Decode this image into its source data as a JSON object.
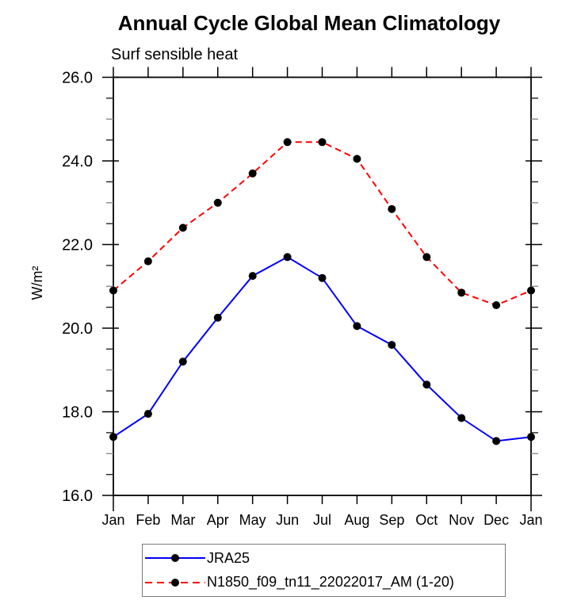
{
  "title": "Annual Cycle Global Mean Climatology",
  "subtitle": "Surf sensible heat",
  "ylabel": "W/m²",
  "colors": {
    "series1": "#0000ff",
    "series2": "#ff0000",
    "marker": "#000000",
    "axis": "#000000",
    "background": "#ffffff"
  },
  "legend": {
    "items": [
      {
        "label": "JRA25",
        "color": "#0000ff",
        "line_style": "solid",
        "marker": "filled-circle",
        "marker_color": "#000000"
      },
      {
        "label": "N1850_f09_tn11_22022017_AM (1-20)",
        "color": "#ff0000",
        "line_style": "dashed",
        "marker": "filled-circle",
        "marker_color": "#000000"
      }
    ]
  },
  "chart_data": {
    "type": "line",
    "title": "Annual Cycle Global Mean Climatology",
    "subtitle": "Surf sensible heat",
    "ylabel": "W/m²",
    "xlabel": "",
    "categories": [
      "Jan",
      "Feb",
      "Mar",
      "Apr",
      "May",
      "Jun",
      "Jul",
      "Aug",
      "Sep",
      "Oct",
      "Nov",
      "Dec",
      "Jan"
    ],
    "series": [
      {
        "name": "JRA25",
        "color": "#0000ff",
        "line_style": "solid",
        "marker": "filled-circle",
        "marker_color": "#000000",
        "values": [
          17.4,
          17.95,
          19.2,
          20.25,
          21.25,
          21.7,
          21.2,
          20.05,
          19.6,
          18.65,
          17.85,
          17.3,
          17.4
        ]
      },
      {
        "name": "N1850_f09_tn11_22022017_AM (1-20)",
        "color": "#ff0000",
        "line_style": "dashed",
        "marker": "filled-circle",
        "marker_color": "#000000",
        "values": [
          20.9,
          21.6,
          22.4,
          23.0,
          23.7,
          24.45,
          24.45,
          24.05,
          22.85,
          21.7,
          20.85,
          20.55,
          20.9
        ]
      }
    ],
    "ylim": [
      16.0,
      26.0
    ],
    "ytick_major": [
      16.0,
      18.0,
      20.0,
      22.0,
      24.0,
      26.0
    ],
    "ytick_major_labels": [
      "16.0",
      "18.0",
      "20.0",
      "22.0",
      "24.0",
      "26.0"
    ],
    "ytick_minor_step": 0.5,
    "grid": false,
    "legend_position": "bottom"
  }
}
